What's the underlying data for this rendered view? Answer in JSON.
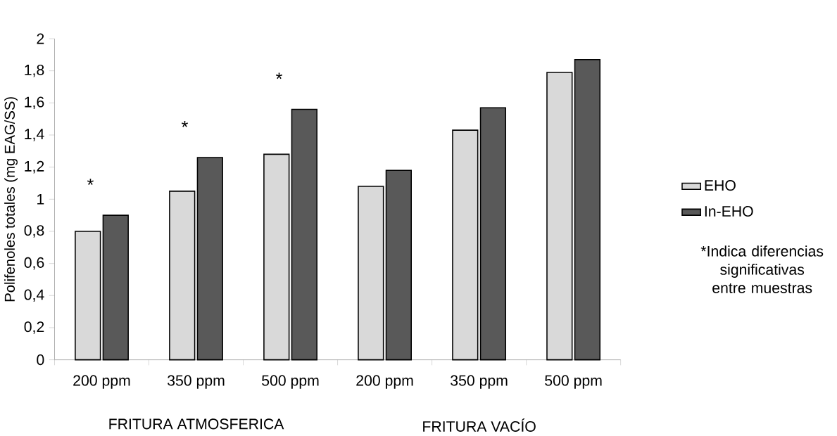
{
  "chart_data": {
    "type": "bar",
    "ylabel": "Polifenoles totales (mg EAG/SS)",
    "categories": [
      "200 ppm",
      "350 ppm",
      "500 ppm",
      "200 ppm",
      "350 ppm",
      "500 ppm"
    ],
    "series": [
      {
        "name": "EHO",
        "color": "#d9d9d9",
        "values": [
          0.8,
          1.05,
          1.28,
          1.08,
          1.43,
          1.79
        ]
      },
      {
        "name": "In-EHO",
        "color": "#595959",
        "values": [
          0.9,
          1.26,
          1.56,
          1.18,
          1.57,
          1.87
        ]
      }
    ],
    "ylim": [
      0,
      2
    ],
    "yticks": [
      {
        "value": 0,
        "label": "0"
      },
      {
        "value": 0.2,
        "label": "0,2"
      },
      {
        "value": 0.4,
        "label": "0,4"
      },
      {
        "value": 0.6,
        "label": "0,6"
      },
      {
        "value": 0.8,
        "label": "0,8"
      },
      {
        "value": 1,
        "label": "1"
      },
      {
        "value": 1.2,
        "label": "1,2"
      },
      {
        "value": 1.4,
        "label": "1,4"
      },
      {
        "value": 1.6,
        "label": "1,6"
      },
      {
        "value": 1.8,
        "label": "1,8"
      },
      {
        "value": 2,
        "label": "2"
      }
    ],
    "grid": false,
    "legend": "right",
    "annotations": [
      "FRITURA ATMOSFERICA",
      "FRITURA VACÍO",
      "*Indica diferencias significativas entre muestras",
      {
        "text": "*",
        "x": "200 ppm",
        "y": 0.9
      },
      {
        "text": "*",
        "x": "350 ppm",
        "y": 1.26
      },
      {
        "text": "*",
        "x": "500 ppm",
        "y": 1.56
      }
    ]
  }
}
